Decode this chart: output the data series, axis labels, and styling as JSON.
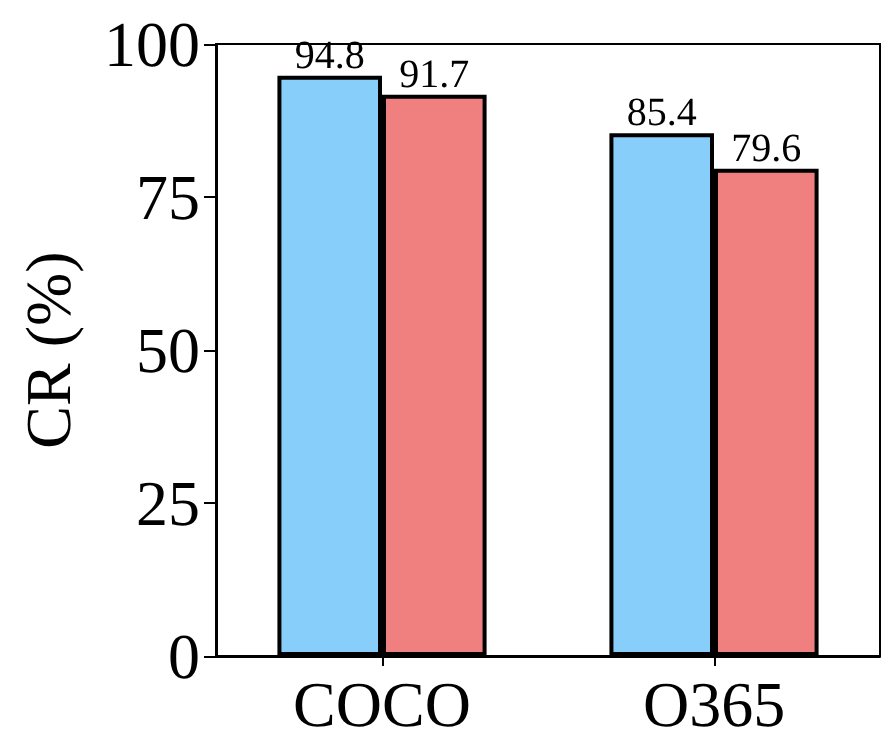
{
  "chart_data": {
    "type": "bar",
    "ylabel": "CR (%)",
    "categories": [
      "COCO",
      "O365"
    ],
    "series": [
      {
        "color": "#87cefa",
        "values": [
          94.8,
          85.4
        ]
      },
      {
        "color": "#f08080",
        "values": [
          91.7,
          79.6
        ]
      }
    ],
    "ylim": [
      0,
      100
    ],
    "yticks": [
      0,
      25,
      50,
      75,
      100
    ],
    "data_labels": true,
    "grid": false
  }
}
